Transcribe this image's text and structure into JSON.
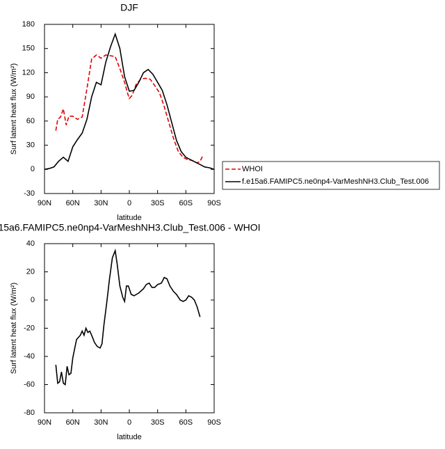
{
  "chart_data": [
    {
      "type": "line",
      "title": "DJF",
      "xlabel": "latitude",
      "ylabel": "Surf latent heat flux (W/m²)",
      "xlim": [
        90,
        -90
      ],
      "xticks": [
        {
          "value": 90,
          "label": "90N"
        },
        {
          "value": 60,
          "label": "60N"
        },
        {
          "value": 30,
          "label": "30N"
        },
        0,
        {
          "value": -30,
          "label": "30S"
        },
        {
          "value": -60,
          "label": "60S"
        },
        {
          "value": -90,
          "label": "90S"
        }
      ],
      "ylim": [
        -30,
        180
      ],
      "yticks": [
        -30,
        0,
        30,
        60,
        90,
        120,
        150,
        180
      ],
      "series": [
        {
          "name": "WHOI",
          "color": "#e00000",
          "dashed": true,
          "x": [
            78,
            76,
            73,
            70,
            67,
            64,
            60,
            55,
            50,
            45,
            40,
            35,
            30,
            25,
            20,
            15,
            10,
            5,
            2,
            0,
            -3,
            -7,
            -12,
            -17,
            -22,
            -27,
            -32,
            -37,
            -42,
            -47,
            -52,
            -57,
            -62,
            -67,
            -72,
            -75,
            -78
          ],
          "values": [
            48,
            62,
            65,
            75,
            55,
            66,
            66,
            62,
            65,
            100,
            137,
            142,
            138,
            142,
            141,
            140,
            125,
            108,
            95,
            88,
            92,
            105,
            112,
            113,
            112,
            104,
            95,
            78,
            58,
            38,
            22,
            15,
            12,
            11,
            8,
            10,
            17
          ]
        },
        {
          "name": "f.e15a6.FAMIPC5.ne0np4-VarMeshNH3.Club_Test.006",
          "color": "#000000",
          "dashed": false,
          "x": [
            90,
            85,
            80,
            75,
            70,
            65,
            60,
            55,
            50,
            45,
            40,
            35,
            30,
            25,
            20,
            15,
            10,
            5,
            0,
            -5,
            -10,
            -15,
            -20,
            -25,
            -30,
            -35,
            -40,
            -45,
            -50,
            -55,
            -60,
            -65,
            -70,
            -75,
            -80,
            -85,
            -90
          ],
          "values": [
            0,
            1,
            3,
            10,
            15,
            10,
            28,
            37,
            45,
            62,
            90,
            108,
            105,
            133,
            152,
            168,
            150,
            115,
            97,
            98,
            108,
            120,
            124,
            118,
            108,
            98,
            80,
            58,
            36,
            22,
            15,
            12,
            9,
            6,
            3,
            2,
            0
          ]
        }
      ]
    },
    {
      "type": "line",
      "title": "15a6.FAMIPC5.ne0np4-VarMeshNH3.Club_Test.006 - WHOI",
      "xlabel": "latitude",
      "ylabel": "Surf latent heat flux (W/m²)",
      "xlim": [
        90,
        -90
      ],
      "xticks": [
        {
          "value": 90,
          "label": "90N"
        },
        {
          "value": 60,
          "label": "60N"
        },
        {
          "value": 30,
          "label": "30N"
        },
        0,
        {
          "value": -30,
          "label": "30S"
        },
        {
          "value": -60,
          "label": "60S"
        },
        {
          "value": -90,
          "label": "90S"
        }
      ],
      "ylim": [
        -80,
        40
      ],
      "yticks": [
        -80,
        -60,
        -40,
        -20,
        0,
        20,
        40
      ],
      "series": [
        {
          "color": "#000000",
          "dashed": false,
          "x": [
            78,
            76,
            74,
            72,
            70,
            68,
            66,
            64,
            62,
            60,
            56,
            52,
            50,
            48,
            46,
            44,
            42,
            40,
            37,
            34,
            31,
            29,
            27,
            24,
            21,
            18,
            15,
            13,
            10,
            7,
            5,
            3,
            1,
            -2,
            -5,
            -10,
            -15,
            -18,
            -21,
            -24,
            -27,
            -30,
            -34,
            -37,
            -40,
            -43,
            -47,
            -50,
            -54,
            -57,
            -60,
            -63,
            -66,
            -69,
            -72,
            -75
          ],
          "values": [
            -46,
            -59,
            -58,
            -51,
            -59,
            -60,
            -47,
            -53,
            -52,
            -41,
            -28,
            -25,
            -22,
            -25,
            -20,
            -23,
            -22,
            -25,
            -30,
            -33,
            -34,
            -31,
            -18,
            -2,
            15,
            30,
            35,
            26,
            10,
            2,
            -1,
            10,
            10,
            4,
            3,
            5,
            8,
            11,
            12,
            9,
            9,
            11,
            12,
            16,
            15,
            10,
            6,
            4,
            0,
            -1,
            0,
            3,
            2,
            0,
            -5,
            -12
          ]
        }
      ]
    }
  ]
}
